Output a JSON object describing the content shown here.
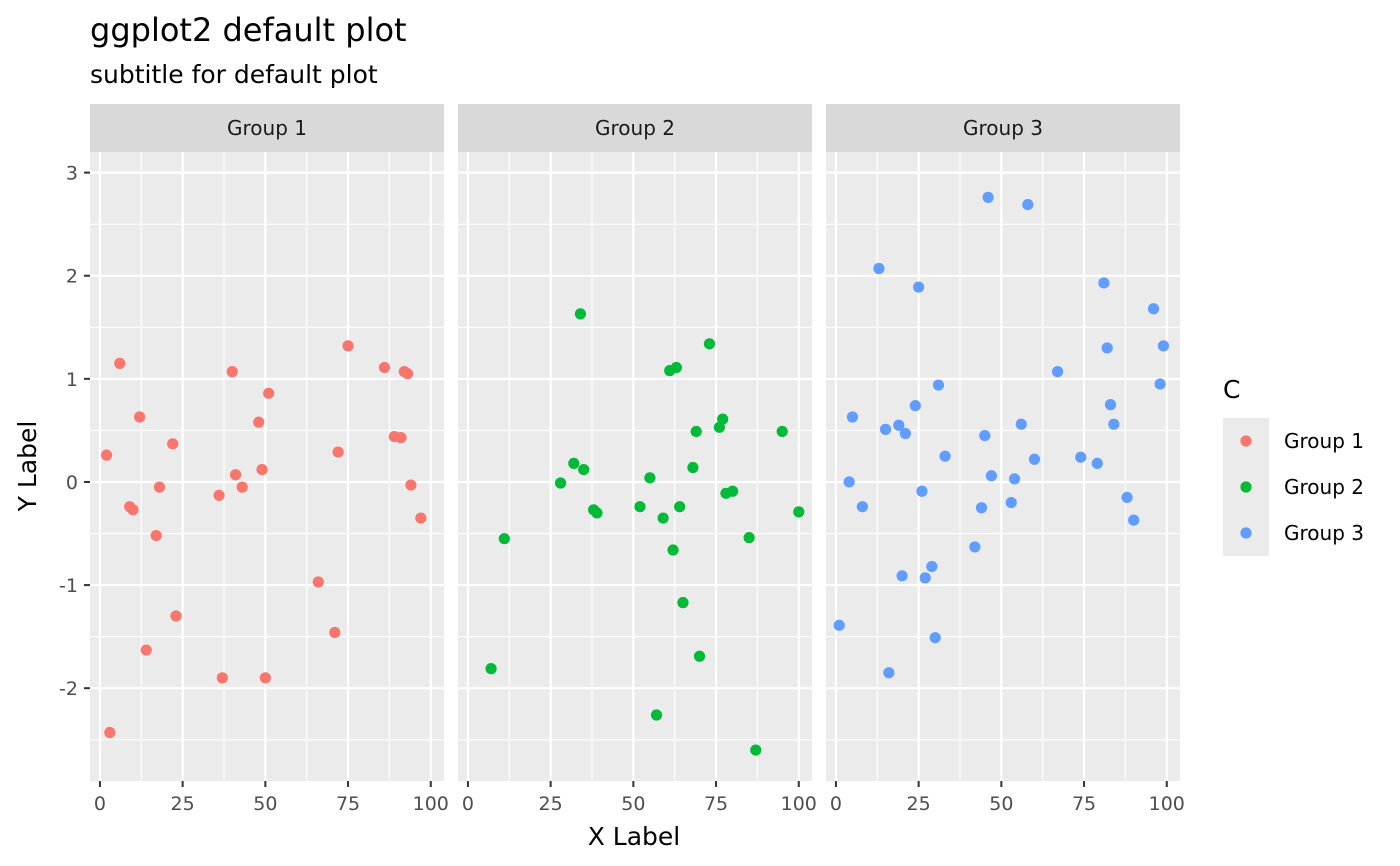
{
  "chart_data": {
    "type": "scatter",
    "title": "ggplot2 default plot",
    "subtitle": "subtitle for default plot",
    "xlabel": "X Label",
    "ylabel": "Y Label",
    "xlim": [
      -3,
      104
    ],
    "ylim": [
      -2.9,
      3.2
    ],
    "x_ticks": [
      0,
      25,
      50,
      75,
      100
    ],
    "x_tick_labels": [
      "0",
      "25",
      "50",
      "75",
      "100"
    ],
    "y_ticks": [
      -2,
      -1,
      0,
      1,
      2,
      3
    ],
    "y_tick_labels": [
      "-2",
      "-1",
      "0",
      "1",
      "2",
      "3"
    ],
    "grid": true,
    "legend": {
      "title": "C",
      "placement": "right",
      "entries": [
        "Group 1",
        "Group 2",
        "Group 3"
      ]
    },
    "colors": [
      "#F8766D",
      "#00BA38",
      "#619CFF"
    ],
    "panels": [
      {
        "strip": "Group 1",
        "points": [
          [
            2,
            0.26
          ],
          [
            3,
            -2.43
          ],
          [
            6,
            1.15
          ],
          [
            9,
            -0.24
          ],
          [
            10,
            -0.27
          ],
          [
            12,
            0.63
          ],
          [
            14,
            -1.63
          ],
          [
            17,
            -0.52
          ],
          [
            18,
            -0.05
          ],
          [
            22,
            0.37
          ],
          [
            23,
            -1.3
          ],
          [
            36,
            -0.13
          ],
          [
            37,
            -1.9
          ],
          [
            40,
            1.07
          ],
          [
            41,
            0.07
          ],
          [
            43,
            -0.05
          ],
          [
            48,
            0.58
          ],
          [
            49,
            0.12
          ],
          [
            50,
            -1.9
          ],
          [
            51,
            0.86
          ],
          [
            66,
            -0.97
          ],
          [
            71,
            -1.46
          ],
          [
            72,
            0.29
          ],
          [
            75,
            1.32
          ],
          [
            86,
            1.11
          ],
          [
            89,
            0.44
          ],
          [
            91,
            0.43
          ],
          [
            92,
            1.07
          ],
          [
            93,
            1.05
          ],
          [
            94,
            -0.03
          ],
          [
            97,
            -0.35
          ]
        ]
      },
      {
        "strip": "Group 2",
        "points": [
          [
            7,
            -1.81
          ],
          [
            11,
            -0.55
          ],
          [
            28,
            -0.01
          ],
          [
            32,
            0.18
          ],
          [
            34,
            1.63
          ],
          [
            35,
            0.12
          ],
          [
            38,
            -0.27
          ],
          [
            39,
            -0.3
          ],
          [
            52,
            -0.24
          ],
          [
            55,
            0.04
          ],
          [
            57,
            -2.26
          ],
          [
            59,
            -0.35
          ],
          [
            61,
            1.08
          ],
          [
            62,
            -0.66
          ],
          [
            63,
            1.11
          ],
          [
            64,
            -0.24
          ],
          [
            65,
            -1.17
          ],
          [
            68,
            0.14
          ],
          [
            69,
            0.49
          ],
          [
            70,
            -1.69
          ],
          [
            73,
            1.34
          ],
          [
            76,
            0.53
          ],
          [
            77,
            0.61
          ],
          [
            78,
            -0.11
          ],
          [
            80,
            -0.09
          ],
          [
            85,
            -0.54
          ],
          [
            87,
            -2.6
          ],
          [
            95,
            0.49
          ],
          [
            100,
            -0.29
          ]
        ]
      },
      {
        "strip": "Group 3",
        "points": [
          [
            1,
            -1.39
          ],
          [
            4,
            0.0
          ],
          [
            5,
            0.63
          ],
          [
            8,
            -0.24
          ],
          [
            13,
            2.07
          ],
          [
            15,
            0.51
          ],
          [
            16,
            -1.85
          ],
          [
            19,
            0.55
          ],
          [
            20,
            -0.91
          ],
          [
            21,
            0.47
          ],
          [
            24,
            0.74
          ],
          [
            25,
            1.89
          ],
          [
            26,
            -0.09
          ],
          [
            27,
            -0.93
          ],
          [
            29,
            -0.82
          ],
          [
            30,
            -1.51
          ],
          [
            31,
            0.94
          ],
          [
            33,
            0.25
          ],
          [
            42,
            -0.63
          ],
          [
            44,
            -0.25
          ],
          [
            45,
            0.45
          ],
          [
            46,
            2.76
          ],
          [
            47,
            0.06
          ],
          [
            53,
            -0.2
          ],
          [
            54,
            0.03
          ],
          [
            56,
            0.56
          ],
          [
            58,
            2.69
          ],
          [
            60,
            0.22
          ],
          [
            67,
            1.07
          ],
          [
            74,
            0.24
          ],
          [
            79,
            0.18
          ],
          [
            81,
            1.93
          ],
          [
            82,
            1.3
          ],
          [
            83,
            0.75
          ],
          [
            84,
            0.56
          ],
          [
            88,
            -0.15
          ],
          [
            90,
            -0.37
          ],
          [
            96,
            1.68
          ],
          [
            98,
            0.95
          ],
          [
            99,
            1.32
          ]
        ]
      }
    ]
  }
}
